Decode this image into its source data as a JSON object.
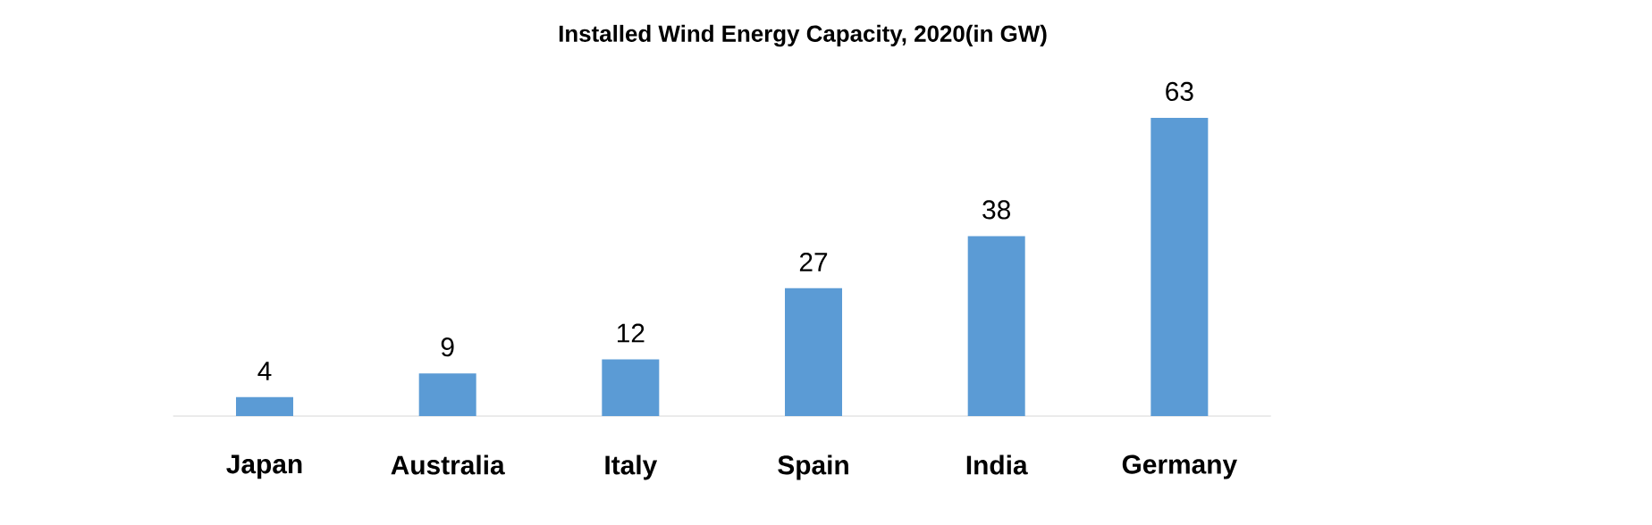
{
  "chart_data": {
    "type": "bar",
    "title": "Installed Wind Energy Capacity, 2020(in GW)",
    "categories": [
      "Japan",
      "Australia",
      "Italy",
      "Spain",
      "India",
      "Germany"
    ],
    "values": [
      4,
      9,
      12,
      27,
      38,
      63
    ],
    "color": "#5b9bd5",
    "data_labels": true
  }
}
